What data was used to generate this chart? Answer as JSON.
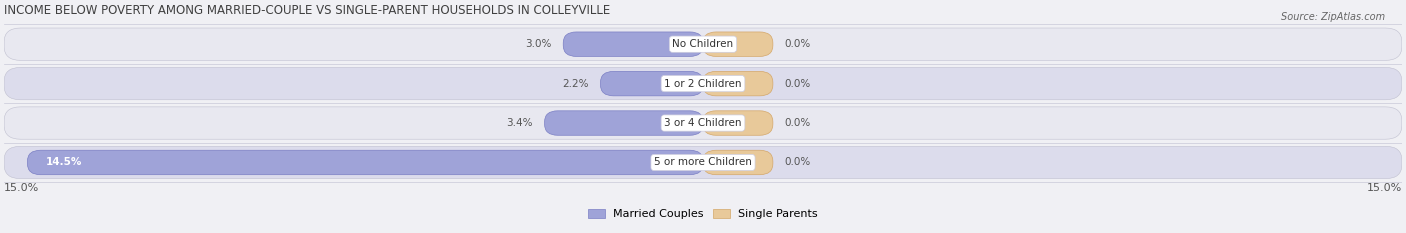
{
  "title": "INCOME BELOW POVERTY AMONG MARRIED-COUPLE VS SINGLE-PARENT HOUSEHOLDS IN COLLEYVILLE",
  "source": "Source: ZipAtlas.com",
  "categories": [
    "No Children",
    "1 or 2 Children",
    "3 or 4 Children",
    "5 or more Children"
  ],
  "married_values": [
    3.0,
    2.2,
    3.4,
    14.5
  ],
  "single_values": [
    0.0,
    0.0,
    0.0,
    0.0
  ],
  "max_val": 15.0,
  "married_color": "#7b7fc4",
  "married_color_fill": "#9fa3d8",
  "single_color": "#d4a76a",
  "single_color_fill": "#e8c99a",
  "bg_color": "#f0f0f4",
  "row_colors": [
    "#e8e8f0",
    "#dcdcec",
    "#e8e8f0",
    "#dcdcec"
  ],
  "title_color": "#404040",
  "value_color": "#555555",
  "legend_married": "Married Couples",
  "legend_single": "Single Parents",
  "axis_label": "15.0%"
}
